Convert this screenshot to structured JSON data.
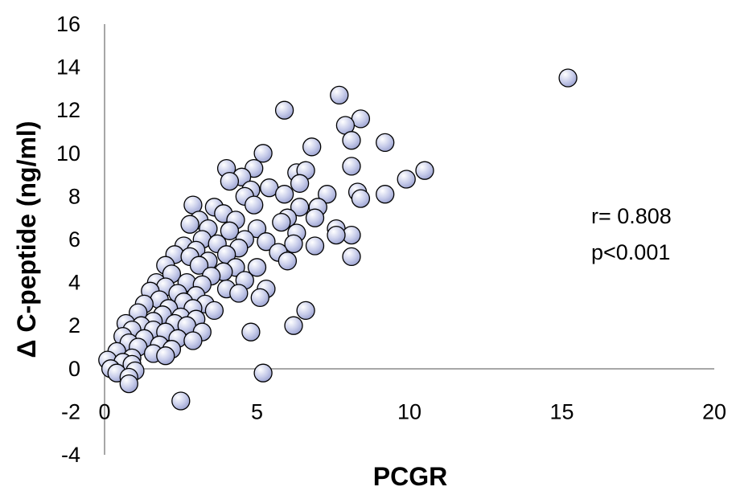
{
  "chart_data": {
    "type": "scatter",
    "title": "",
    "xlabel": "PCGR",
    "ylabel": "Δ C-peptide (ng/ml)",
    "xlim": [
      0,
      20
    ],
    "ylim": [
      -4,
      16
    ],
    "x_ticks": [
      0,
      5,
      10,
      15,
      20
    ],
    "y_ticks": [
      -4,
      -2,
      0,
      2,
      4,
      6,
      8,
      10,
      12,
      14,
      16
    ],
    "grid": false,
    "legend": "none",
    "marker_color": "#c5cae9",
    "annotations": [
      "r= 0.808",
      "p<0.001"
    ],
    "series": [
      {
        "points": [
          [
            15.2,
            13.5
          ],
          [
            7.7,
            12.7
          ],
          [
            5.9,
            12.0
          ],
          [
            8.4,
            11.6
          ],
          [
            7.9,
            11.3
          ],
          [
            8.1,
            10.6
          ],
          [
            9.2,
            10.5
          ],
          [
            6.8,
            10.3
          ],
          [
            5.2,
            10.0
          ],
          [
            8.1,
            9.4
          ],
          [
            4.0,
            9.3
          ],
          [
            4.9,
            9.3
          ],
          [
            10.5,
            9.2
          ],
          [
            6.3,
            9.1
          ],
          [
            6.6,
            9.2
          ],
          [
            4.5,
            8.9
          ],
          [
            9.9,
            8.8
          ],
          [
            4.1,
            8.7
          ],
          [
            6.4,
            8.6
          ],
          [
            5.4,
            8.4
          ],
          [
            4.8,
            8.3
          ],
          [
            8.3,
            8.2
          ],
          [
            9.2,
            8.1
          ],
          [
            5.9,
            8.1
          ],
          [
            7.3,
            8.1
          ],
          [
            4.6,
            8.0
          ],
          [
            8.4,
            7.9
          ],
          [
            2.9,
            7.6
          ],
          [
            3.6,
            7.5
          ],
          [
            4.9,
            7.6
          ],
          [
            6.4,
            7.5
          ],
          [
            7.0,
            7.5
          ],
          [
            3.9,
            7.2
          ],
          [
            6.0,
            7.0
          ],
          [
            6.9,
            7.0
          ],
          [
            3.1,
            6.9
          ],
          [
            4.3,
            6.9
          ],
          [
            5.8,
            6.8
          ],
          [
            2.8,
            6.7
          ],
          [
            3.4,
            6.5
          ],
          [
            5.0,
            6.5
          ],
          [
            4.1,
            6.4
          ],
          [
            7.6,
            6.5
          ],
          [
            6.3,
            6.3
          ],
          [
            8.1,
            6.2
          ],
          [
            7.6,
            6.2
          ],
          [
            3.2,
            6.0
          ],
          [
            4.6,
            6.0
          ],
          [
            5.3,
            5.9
          ],
          [
            6.2,
            5.8
          ],
          [
            2.6,
            5.7
          ],
          [
            3.7,
            5.8
          ],
          [
            6.9,
            5.7
          ],
          [
            4.4,
            5.6
          ],
          [
            3.0,
            5.5
          ],
          [
            5.7,
            5.4
          ],
          [
            2.3,
            5.3
          ],
          [
            4.0,
            5.3
          ],
          [
            2.8,
            5.2
          ],
          [
            8.1,
            5.2
          ],
          [
            3.4,
            5.0
          ],
          [
            6.0,
            5.0
          ],
          [
            2.0,
            4.8
          ],
          [
            3.1,
            4.8
          ],
          [
            4.3,
            4.7
          ],
          [
            5.0,
            4.7
          ],
          [
            3.9,
            4.5
          ],
          [
            2.2,
            4.4
          ],
          [
            3.5,
            4.3
          ],
          [
            4.6,
            4.1
          ],
          [
            1.7,
            4.0
          ],
          [
            2.7,
            4.0
          ],
          [
            3.2,
            3.9
          ],
          [
            2.0,
            3.8
          ],
          [
            4.0,
            3.7
          ],
          [
            5.3,
            3.7
          ],
          [
            1.5,
            3.6
          ],
          [
            2.4,
            3.5
          ],
          [
            3.0,
            3.4
          ],
          [
            4.4,
            3.5
          ],
          [
            1.8,
            3.2
          ],
          [
            2.6,
            3.1
          ],
          [
            3.3,
            3.0
          ],
          [
            5.1,
            3.3
          ],
          [
            1.3,
            3.0
          ],
          [
            2.1,
            2.8
          ],
          [
            2.9,
            2.8
          ],
          [
            3.6,
            2.7
          ],
          [
            6.6,
            2.7
          ],
          [
            1.1,
            2.6
          ],
          [
            1.9,
            2.5
          ],
          [
            2.5,
            2.4
          ],
          [
            3.0,
            2.3
          ],
          [
            1.6,
            2.2
          ],
          [
            2.3,
            2.1
          ],
          [
            0.7,
            2.1
          ],
          [
            1.2,
            2.0
          ],
          [
            2.7,
            2.0
          ],
          [
            6.2,
            2.0
          ],
          [
            0.9,
            1.8
          ],
          [
            1.6,
            1.8
          ],
          [
            2.0,
            1.7
          ],
          [
            3.2,
            1.7
          ],
          [
            4.8,
            1.7
          ],
          [
            0.6,
            1.5
          ],
          [
            1.3,
            1.4
          ],
          [
            2.4,
            1.4
          ],
          [
            0.8,
            1.2
          ],
          [
            1.8,
            1.1
          ],
          [
            2.9,
            1.3
          ],
          [
            1.1,
            1.0
          ],
          [
            2.2,
            0.9
          ],
          [
            0.4,
            0.8
          ],
          [
            1.6,
            0.7
          ],
          [
            2.0,
            0.6
          ],
          [
            0.9,
            0.5
          ],
          [
            0.1,
            0.4
          ],
          [
            0.6,
            0.3
          ],
          [
            0.9,
            0.2
          ],
          [
            0.2,
            0.0
          ],
          [
            1.0,
            -0.1
          ],
          [
            0.4,
            -0.2
          ],
          [
            0.8,
            -0.4
          ],
          [
            0.8,
            -0.7
          ],
          [
            5.2,
            -0.2
          ],
          [
            2.5,
            -1.5
          ]
        ]
      }
    ]
  }
}
